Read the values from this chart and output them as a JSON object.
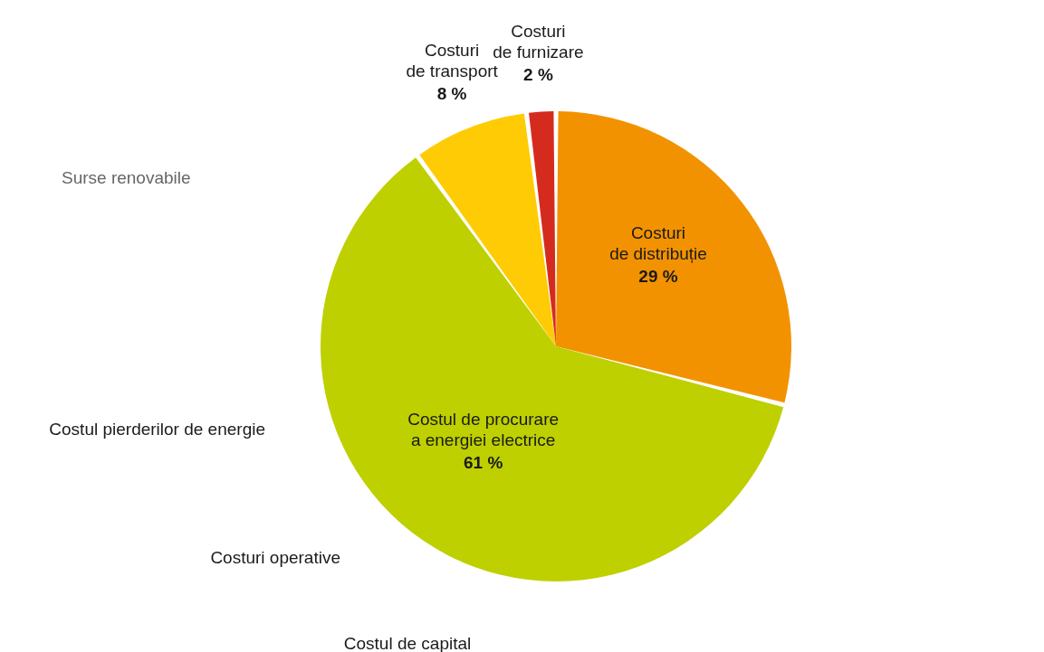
{
  "chart_data": {
    "type": "pie",
    "categories": [
      "Costuri\nde distribuție",
      "Costul de procurare\na energiei electrice",
      "Costuri\nde transport",
      "Costuri\nde furnizare"
    ],
    "values": [
      29,
      61,
      8,
      2
    ],
    "colors": [
      "#f39200",
      "#bed000",
      "#ffcb05",
      "#d52b1e"
    ],
    "value_labels": [
      "29 %",
      "61 %",
      "8 %",
      "2 %"
    ],
    "annotations": [
      "Surse renovabile",
      "Costul pierderilor de energie",
      "Costuri operative",
      "Costul de capital"
    ],
    "legend": false
  }
}
